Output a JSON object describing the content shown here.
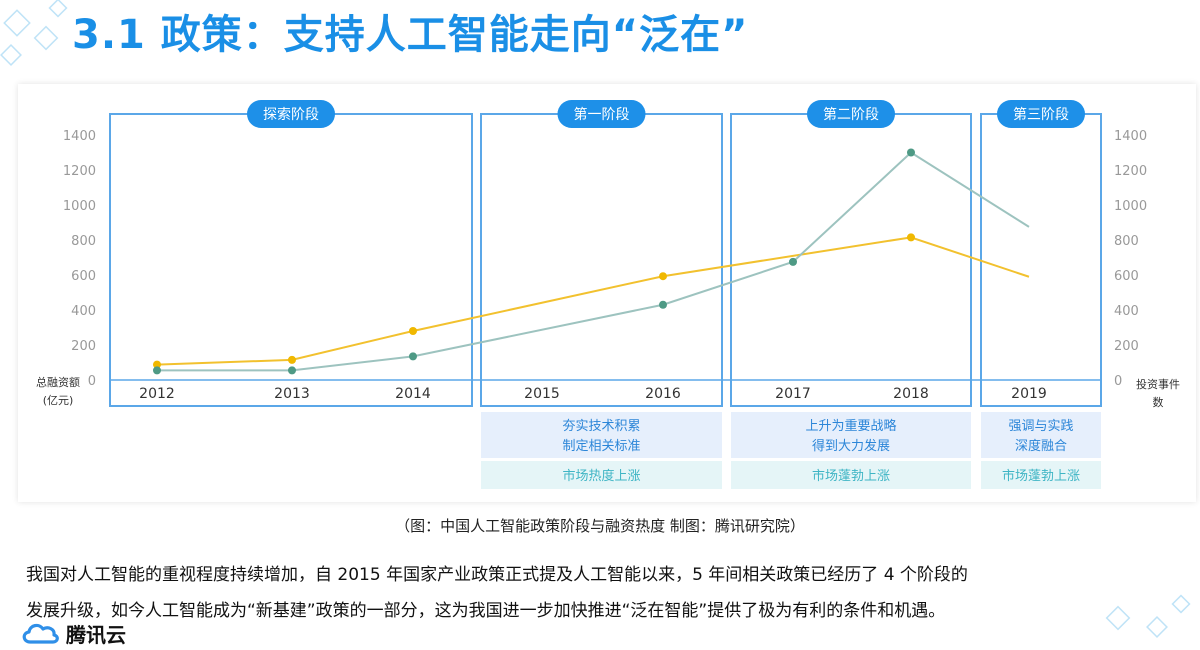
{
  "slide": {
    "title": "3.1 政策：支持人工智能走向“泛在”",
    "caption": "（图：中国人工智能政策阶段与融资热度 制图：腾讯研究院）",
    "paragraph_lines": [
      "我国对人工智能的重视程度持续增加，自 2015 年国家产业政策正式提及人工智能以来，5 年间相关政策已经历了 4 个阶段的",
      "发展升级，如今人工智能成为“新基建”政策的一部分，这为我国进一步加快推进“泛在智能”提供了极为有利的条件和机遇。"
    ],
    "brand": "腾讯云"
  },
  "colors": {
    "title": "#1a8fe6",
    "stage_border": "#5ba7e8",
    "stage_pill": "#1e90e8",
    "funding_line": "#f2c12e",
    "events_line": "#9dc3bf",
    "events_marker": "#4e9a85",
    "policy_box": "#e6effc",
    "heat_box": "#e5f5f7",
    "heat_text": "#3fb5c5",
    "policy_text": "#2c86d8"
  },
  "chart_data": {
    "type": "line",
    "title": "",
    "categories": [
      "2012",
      "2013",
      "2014",
      "2015",
      "2016",
      "2017",
      "2018",
      "2019"
    ],
    "ylabel_left": "总融资额\n(亿元)",
    "ylabel_right": "投资事件\n数",
    "ylim_left": [
      0,
      1400
    ],
    "ylim_right": [
      0,
      1400
    ],
    "yticks_left": [
      0,
      200,
      400,
      600,
      800,
      1000,
      1200,
      1400
    ],
    "yticks_right": [
      0,
      200,
      400,
      600,
      800,
      1000,
      1200,
      1400
    ],
    "grid": false,
    "series": [
      {
        "axis": "left",
        "color": "#f2c12e",
        "values": [
          88,
          115,
          280,
          null,
          593,
          null,
          815,
          590
        ],
        "markers": [
          true,
          true,
          true,
          false,
          true,
          false,
          true,
          false
        ]
      },
      {
        "axis": "right",
        "color": "#9dc3bf",
        "values": [
          55,
          55,
          135,
          null,
          430,
          675,
          1300,
          875
        ],
        "markers": [
          true,
          true,
          true,
          false,
          true,
          true,
          true,
          false
        ]
      }
    ],
    "stages": [
      {
        "label": "探索阶段",
        "categories": [
          "2012",
          "2013",
          "2014"
        ],
        "policy": [],
        "heat": ""
      },
      {
        "label": "第一阶段",
        "categories": [
          "2015",
          "2016"
        ],
        "policy": [
          "夯实技术积累",
          "制定相关标准"
        ],
        "heat": "市场热度上涨"
      },
      {
        "label": "第二阶段",
        "categories": [
          "2017",
          "2018"
        ],
        "policy": [
          "上升为重要战略",
          "得到大力发展"
        ],
        "heat": "市场蓬勃上涨"
      },
      {
        "label": "第三阶段",
        "categories": [
          "2019"
        ],
        "policy": [
          "强调与实践",
          "深度融合"
        ],
        "heat": "市场蓬勃上涨"
      }
    ]
  }
}
